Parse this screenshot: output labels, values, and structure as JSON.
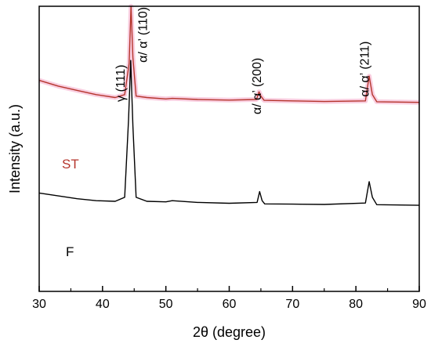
{
  "chart_data": {
    "type": "line",
    "title": "",
    "xlabel": "2θ (degree)",
    "ylabel": "Intensity (a.u.)",
    "xlim": [
      30,
      90
    ],
    "x_ticks": [
      "30",
      "40",
      "50",
      "60",
      "70",
      "80",
      "90"
    ],
    "y_ticks": "none",
    "grid": false,
    "series": [
      {
        "name": "ST",
        "color": "#b5352c",
        "points": [
          [
            30,
            0.74
          ],
          [
            33,
            0.72
          ],
          [
            36,
            0.705
          ],
          [
            39,
            0.69
          ],
          [
            42,
            0.68
          ],
          [
            43.5,
            0.69
          ],
          [
            44.2,
            0.8
          ],
          [
            44.5,
            1.0
          ],
          [
            44.8,
            0.82
          ],
          [
            45.3,
            0.685
          ],
          [
            47,
            0.68
          ],
          [
            50,
            0.675
          ],
          [
            51,
            0.677
          ],
          [
            55,
            0.673
          ],
          [
            60,
            0.671
          ],
          [
            64.3,
            0.673
          ],
          [
            64.7,
            0.7
          ],
          [
            65.0,
            0.685
          ],
          [
            65.5,
            0.67
          ],
          [
            70,
            0.668
          ],
          [
            75,
            0.666
          ],
          [
            81.5,
            0.668
          ],
          [
            82.1,
            0.755
          ],
          [
            82.6,
            0.69
          ],
          [
            83.3,
            0.665
          ],
          [
            90,
            0.663
          ]
        ]
      },
      {
        "name": "F",
        "color": "#000000",
        "points": [
          [
            30,
            0.345
          ],
          [
            33,
            0.335
          ],
          [
            36,
            0.325
          ],
          [
            39,
            0.318
          ],
          [
            42,
            0.316
          ],
          [
            43.5,
            0.33
          ],
          [
            44.1,
            0.6
          ],
          [
            44.45,
            0.81
          ],
          [
            44.8,
            0.58
          ],
          [
            45.3,
            0.33
          ],
          [
            47,
            0.316
          ],
          [
            50,
            0.314
          ],
          [
            51,
            0.318
          ],
          [
            55,
            0.312
          ],
          [
            60,
            0.309
          ],
          [
            64.4,
            0.312
          ],
          [
            64.8,
            0.35
          ],
          [
            65.2,
            0.318
          ],
          [
            65.6,
            0.307
          ],
          [
            70,
            0.306
          ],
          [
            75,
            0.305
          ],
          [
            81.5,
            0.31
          ],
          [
            82.1,
            0.385
          ],
          [
            82.6,
            0.33
          ],
          [
            83.3,
            0.304
          ],
          [
            90,
            0.302
          ]
        ]
      }
    ],
    "series_labels": [
      "ST",
      "F"
    ],
    "annotations": [
      {
        "text": "γ (111)",
        "x": 43.5,
        "y": 0.73
      },
      {
        "text": "α/ α’  (110)",
        "x": 47.0,
        "y": 0.9
      },
      {
        "text": "α/ α’  (200)",
        "x": 65.0,
        "y": 0.72
      },
      {
        "text": "α/ α’  (211)",
        "x": 82.0,
        "y": 0.78
      }
    ]
  }
}
